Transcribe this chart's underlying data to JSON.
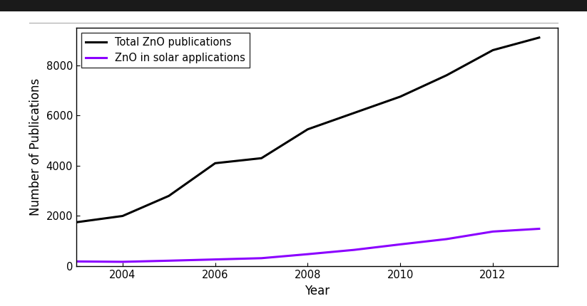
{
  "years": [
    2003,
    2004,
    2005,
    2006,
    2007,
    2008,
    2009,
    2010,
    2011,
    2012,
    2013
  ],
  "total_zno": [
    1750,
    2000,
    2800,
    4100,
    4300,
    5450,
    6100,
    6750,
    7600,
    8600,
    9100
  ],
  "solar_zno": [
    190,
    175,
    220,
    270,
    320,
    480,
    650,
    870,
    1080,
    1380,
    1490
  ],
  "total_color": "#000000",
  "solar_color": "#8B00FF",
  "total_label": "Total ZnO publications",
  "solar_label": "ZnO in solar applications",
  "xlabel": "Year",
  "ylabel": "Number of Publications",
  "xlim_min": 2003.0,
  "xlim_max": 2013.4,
  "ylim_min": 0,
  "ylim_max": 9500,
  "yticks": [
    0,
    2000,
    4000,
    6000,
    8000
  ],
  "xticks": [
    2004,
    2006,
    2008,
    2010,
    2012
  ],
  "linewidth": 2.2,
  "legend_fontsize": 10.5,
  "axis_label_fontsize": 12,
  "tick_fontsize": 10.5,
  "top_bar_color": "#1a1a1a",
  "separator_color": "#aaaaaa",
  "background_color": "#ffffff"
}
